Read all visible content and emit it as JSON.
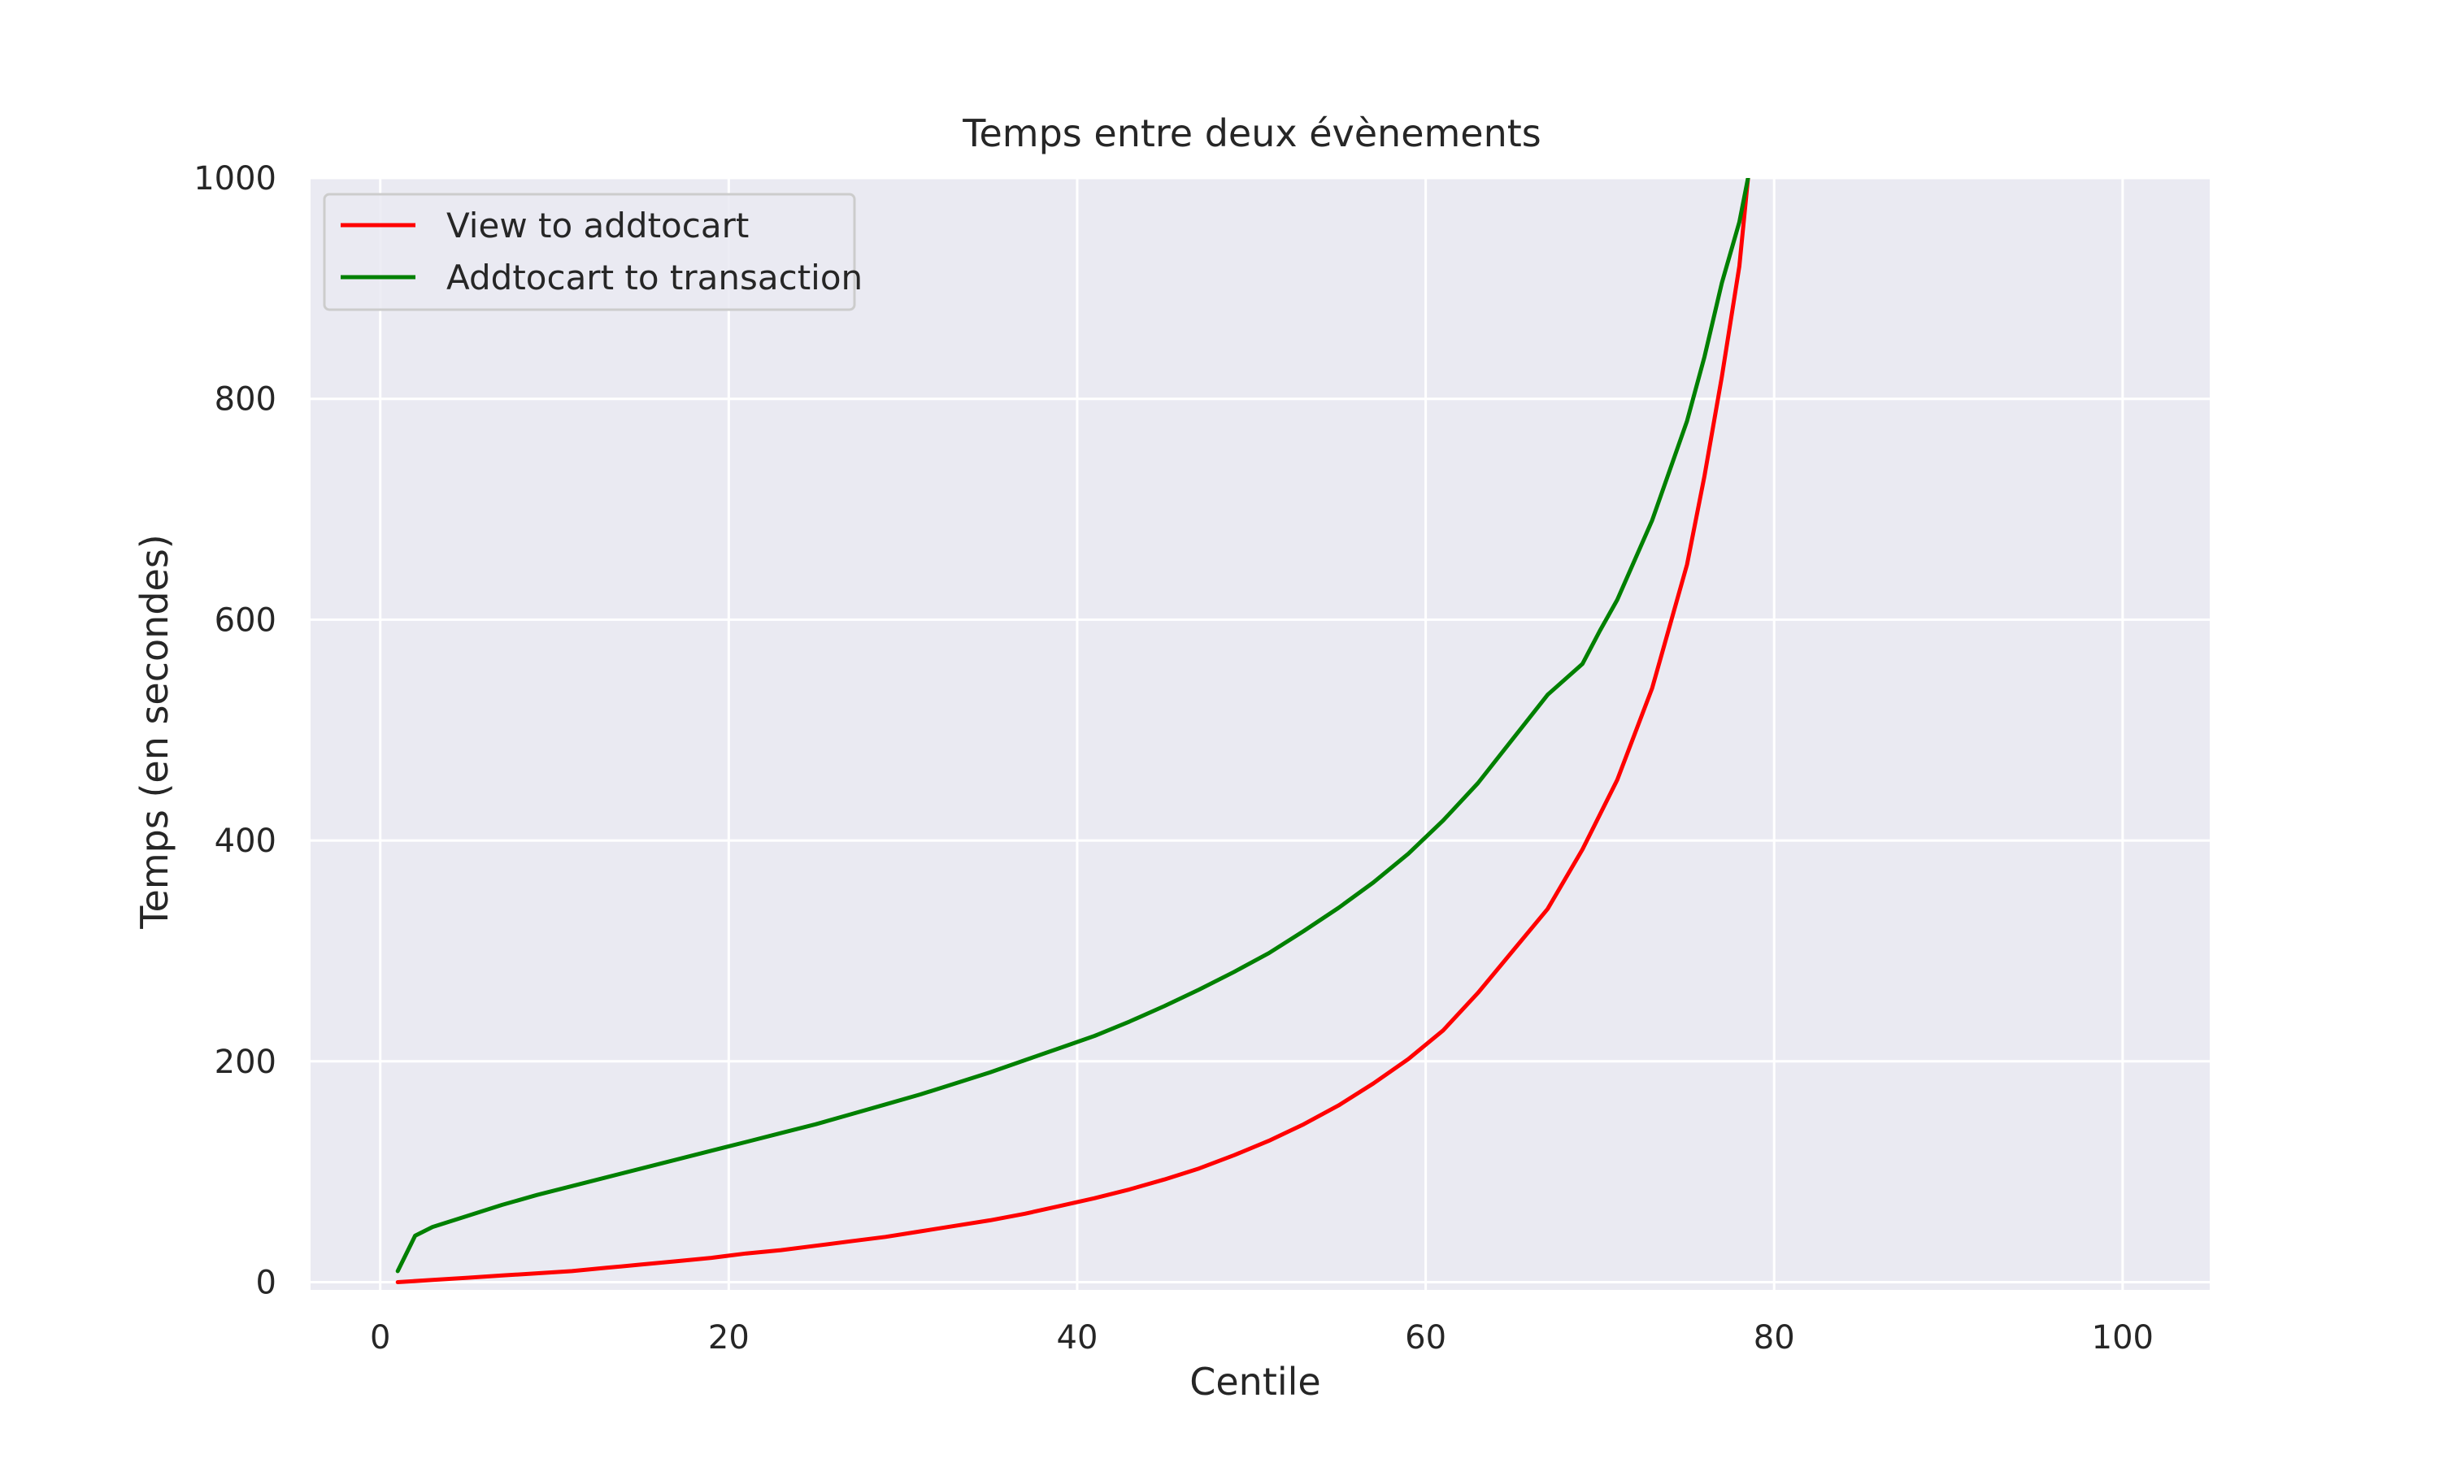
{
  "chart_data": {
    "type": "line",
    "title": "Temps entre deux évènements",
    "xlabel": "Centile",
    "ylabel": "Temps (en secondes)",
    "xlim": [
      -4,
      105
    ],
    "ylim": [
      -7,
      1000
    ],
    "xticks": [
      0,
      20,
      40,
      60,
      80,
      100
    ],
    "yticks": [
      0,
      200,
      400,
      600,
      800,
      1000
    ],
    "grid": true,
    "legend_position": "top-left",
    "colors": {
      "background": "#eaeaf2",
      "grid": "#ffffff"
    },
    "series": [
      {
        "name": "View to addtocart",
        "color": "#ff0000",
        "x": [
          1,
          3,
          5,
          7,
          9,
          11,
          13,
          15,
          17,
          19,
          21,
          23,
          25,
          27,
          29,
          31,
          33,
          35,
          37,
          39,
          41,
          43,
          45,
          47,
          49,
          51,
          53,
          55,
          57,
          59,
          61,
          63,
          65,
          67,
          69,
          71,
          73,
          75,
          76,
          77,
          78,
          78.5
        ],
        "y": [
          0,
          2,
          4,
          6,
          8,
          10,
          13,
          16,
          19,
          22,
          26,
          29,
          33,
          37,
          41,
          46,
          51,
          56,
          62,
          69,
          76,
          84,
          93,
          103,
          115,
          128,
          143,
          160,
          180,
          202,
          228,
          262,
          300,
          338,
          392,
          455,
          538,
          650,
          730,
          820,
          920,
          1000
        ]
      },
      {
        "name": "Addtocart to transaction",
        "color": "#008000",
        "x": [
          1,
          2,
          3,
          5,
          7,
          9,
          11,
          13,
          15,
          17,
          19,
          21,
          23,
          25,
          27,
          29,
          31,
          33,
          35,
          37,
          39,
          41,
          43,
          45,
          47,
          49,
          51,
          53,
          55,
          57,
          59,
          61,
          63,
          65,
          67,
          69,
          70,
          71,
          73,
          75,
          76,
          77,
          78,
          78.5
        ],
        "y": [
          10,
          42,
          50,
          60,
          70,
          79,
          87,
          95,
          103,
          111,
          119,
          127,
          135,
          143,
          152,
          161,
          170,
          180,
          190,
          201,
          212,
          223,
          236,
          250,
          265,
          281,
          298,
          318,
          339,
          362,
          388,
          418,
          452,
          492,
          532,
          560,
          590,
          618,
          690,
          780,
          838,
          905,
          960,
          1000
        ]
      }
    ]
  }
}
